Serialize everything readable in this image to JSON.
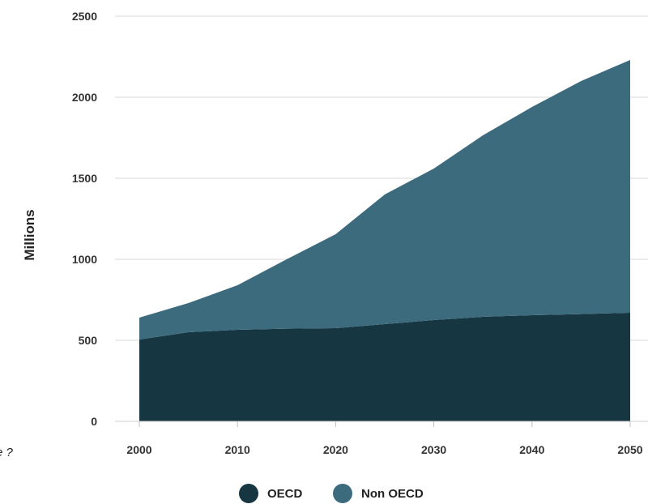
{
  "chart_data": {
    "type": "area",
    "stacked": true,
    "title": "",
    "xlabel": "",
    "ylabel": "Millions",
    "ylim": [
      0,
      2500
    ],
    "xlim": [
      2000,
      2050
    ],
    "x_ticks": [
      2000,
      2010,
      2020,
      2030,
      2040,
      2050
    ],
    "y_ticks": [
      0,
      500,
      1000,
      1500,
      2000,
      2500
    ],
    "grid": true,
    "legend_position": "bottom",
    "x": [
      2000,
      2005,
      2010,
      2015,
      2020,
      2025,
      2030,
      2035,
      2040,
      2045,
      2050
    ],
    "series": [
      {
        "name": "OECD",
        "color": "#163642",
        "values": [
          505,
          550,
          565,
          572,
          575,
          600,
          625,
          645,
          655,
          662,
          670
        ]
      },
      {
        "name": "Non OECD",
        "color": "#3d6b7e",
        "values": [
          135,
          180,
          275,
          428,
          580,
          800,
          935,
          1120,
          1285,
          1438,
          1560
        ]
      }
    ]
  },
  "side_note": "e ?"
}
